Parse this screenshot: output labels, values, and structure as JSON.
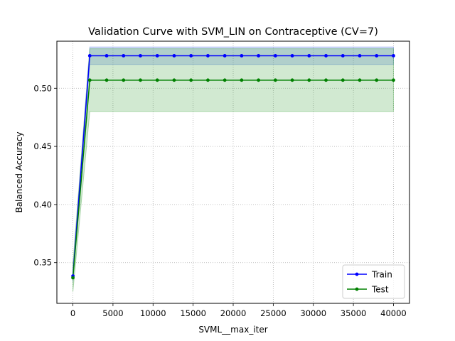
{
  "chart_data": {
    "type": "line",
    "title": "Validation Curve with SVM_LIN on Contraceptive (CV=7)",
    "xlabel": "SVML__max_iter",
    "ylabel": "Balanced Accuracy",
    "xlim": [
      -2000,
      42000
    ],
    "ylim": [
      0.315,
      0.5405
    ],
    "xticks": [
      0,
      5000,
      10000,
      15000,
      20000,
      25000,
      30000,
      35000,
      40000
    ],
    "yticks": [
      0.35,
      0.4,
      0.45,
      0.5
    ],
    "ytick_labels": [
      "0.35",
      "0.40",
      "0.45",
      "0.50"
    ],
    "grid": true,
    "legend_position": "lower-right",
    "x": [
      1,
      2106,
      4211,
      6316,
      8422,
      10527,
      12632,
      14737,
      16843,
      18948,
      21053,
      23158,
      25264,
      27369,
      29474,
      31579,
      33685,
      35790,
      37895,
      40000
    ],
    "series": [
      {
        "name": "Train",
        "color": "#0000ff",
        "band_color": "#4169e1",
        "values": [
          0.3385,
          0.528,
          0.528,
          0.528,
          0.528,
          0.528,
          0.528,
          0.528,
          0.528,
          0.528,
          0.528,
          0.528,
          0.528,
          0.528,
          0.528,
          0.528,
          0.528,
          0.528,
          0.528,
          0.528
        ],
        "lower": [
          0.3335,
          0.5205,
          0.5205,
          0.5205,
          0.5205,
          0.5205,
          0.5205,
          0.5205,
          0.5205,
          0.5205,
          0.5205,
          0.5205,
          0.5205,
          0.5205,
          0.5205,
          0.5205,
          0.5205,
          0.5205,
          0.5205,
          0.5205
        ],
        "upper": [
          0.3435,
          0.5355,
          0.5355,
          0.5355,
          0.5355,
          0.5355,
          0.5355,
          0.5355,
          0.5355,
          0.5355,
          0.5355,
          0.5355,
          0.5355,
          0.5355,
          0.5355,
          0.5355,
          0.5355,
          0.5355,
          0.5355,
          0.5355
        ]
      },
      {
        "name": "Test",
        "color": "#008000",
        "band_color": "#2e9a2e",
        "values": [
          0.337,
          0.507,
          0.507,
          0.507,
          0.507,
          0.507,
          0.507,
          0.507,
          0.507,
          0.507,
          0.507,
          0.507,
          0.507,
          0.507,
          0.507,
          0.507,
          0.507,
          0.507,
          0.507,
          0.507
        ],
        "lower": [
          0.325,
          0.48,
          0.48,
          0.48,
          0.48,
          0.48,
          0.48,
          0.48,
          0.48,
          0.48,
          0.48,
          0.48,
          0.48,
          0.48,
          0.48,
          0.48,
          0.48,
          0.48,
          0.48,
          0.48
        ],
        "upper": [
          0.349,
          0.534,
          0.534,
          0.534,
          0.534,
          0.534,
          0.534,
          0.534,
          0.534,
          0.534,
          0.534,
          0.534,
          0.534,
          0.534,
          0.534,
          0.534,
          0.534,
          0.534,
          0.534,
          0.534
        ]
      }
    ]
  }
}
